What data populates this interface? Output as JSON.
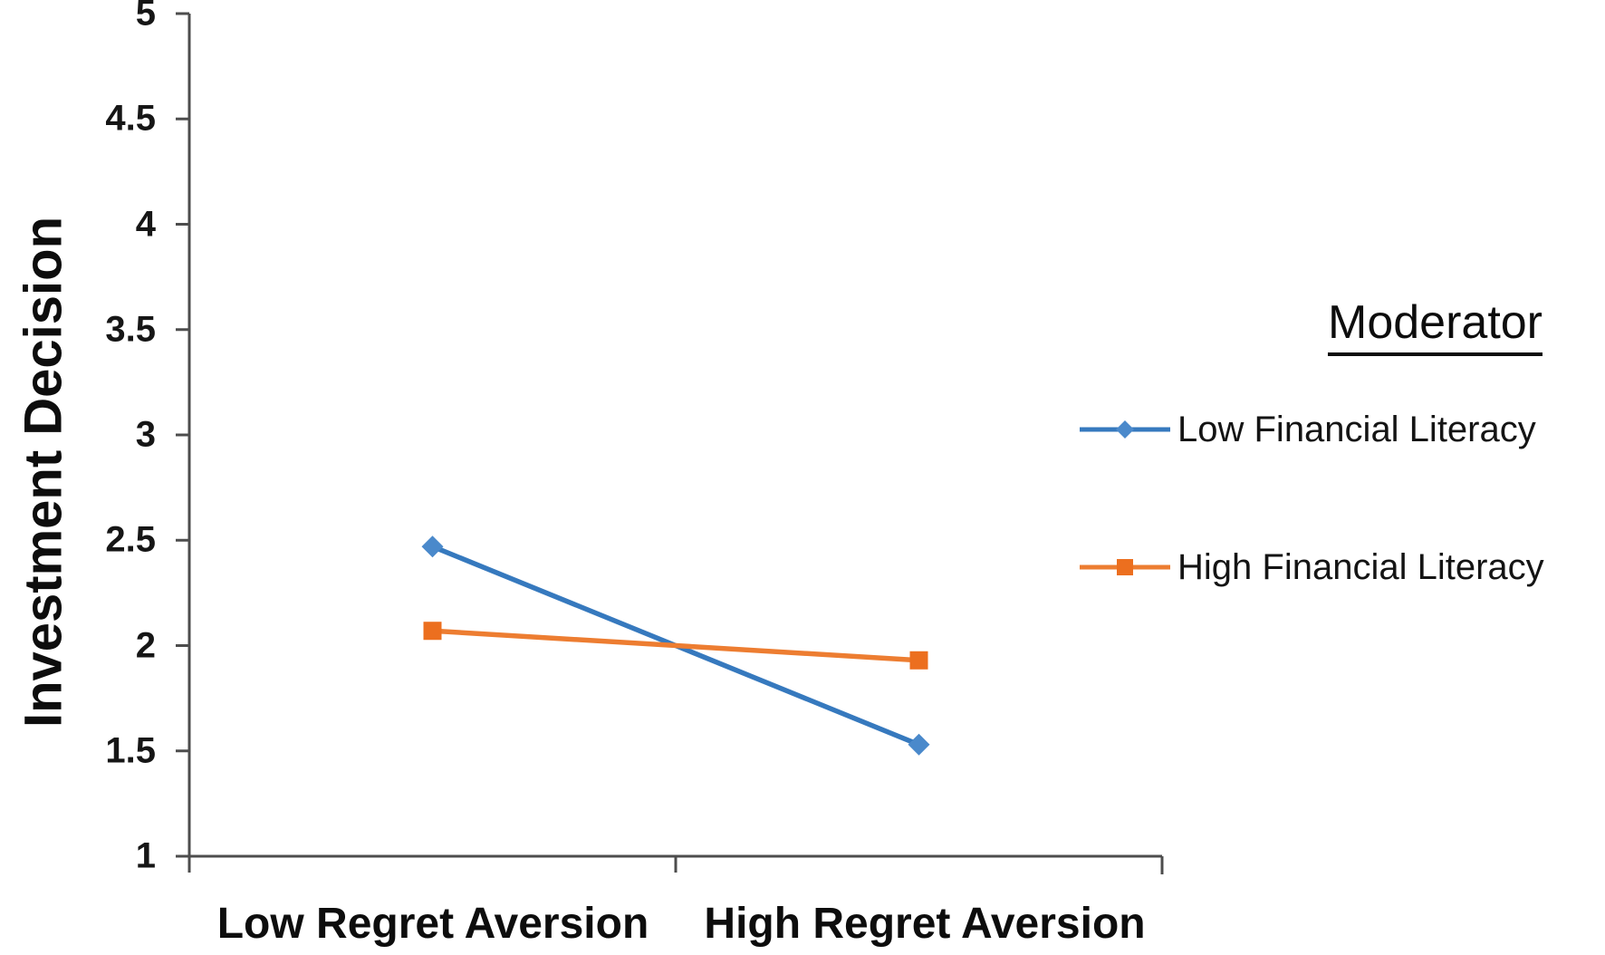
{
  "chart_data": {
    "type": "line",
    "title": "",
    "xlabel": "",
    "ylabel": "Investment Decision",
    "categories": [
      "Low Regret Aversion",
      "High Regret Aversion"
    ],
    "series": [
      {
        "name": "Low Financial Literacy",
        "marker": "diamond",
        "color": "#3679BE",
        "marker_color": "#4A89CB",
        "values": [
          2.47,
          1.53
        ]
      },
      {
        "name": "High Financial Literacy",
        "marker": "square",
        "color": "#ED7D31",
        "marker_color": "#EC6F1F",
        "values": [
          2.07,
          1.93
        ]
      }
    ],
    "ylim": [
      1,
      5
    ],
    "ytick_labels": [
      "1",
      "1.5",
      "2",
      "2.5",
      "3",
      "3.5",
      "4",
      "4.5",
      "5"
    ],
    "grid": false,
    "legend_title": "Moderator",
    "legend_position": "right",
    "legend_title_underlined": true
  },
  "colors": {
    "background": "#ffffff",
    "axis": "#4d4d4d",
    "text": "#0d0d0d"
  }
}
